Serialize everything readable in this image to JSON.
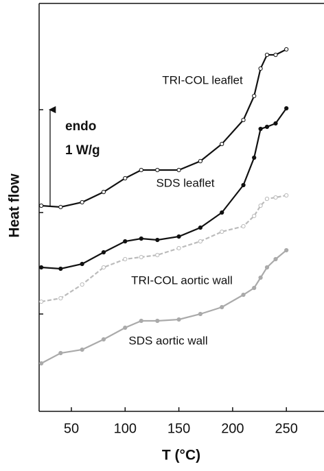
{
  "chart_data": {
    "type": "line",
    "x_label": "T (°C)",
    "y_label": "Heat flow",
    "annotations": [
      "endo",
      "1 W/g"
    ],
    "xlim": [
      20,
      285
    ],
    "xticks": [
      50,
      100,
      150,
      200,
      250
    ],
    "ylim": [
      0,
      595
    ],
    "yticks": [
      142,
      290,
      440
    ],
    "x": [
      22,
      40,
      60,
      80,
      100,
      115,
      130,
      150,
      170,
      190,
      210,
      220,
      226,
      232,
      240,
      250
    ],
    "series": [
      {
        "name": "TRI-COL leaflet",
        "color": "#111111",
        "marker_fill": "#ffffff",
        "dashed": false,
        "values": [
          300,
          298,
          305,
          320,
          340,
          352,
          352,
          352,
          365,
          390,
          425,
          460,
          500,
          520,
          520,
          528
        ]
      },
      {
        "name": "SDS leaflet",
        "color": "#111111",
        "marker_fill": "#111111",
        "dashed": false,
        "values": [
          210,
          208,
          215,
          232,
          248,
          252,
          250,
          255,
          268,
          290,
          330,
          370,
          412,
          415,
          420,
          442
        ]
      },
      {
        "name": "TRI-COL aortic wall",
        "color": "#bbbbbb",
        "marker_fill": "#ffffff",
        "dashed": true,
        "values": [
          160,
          165,
          185,
          210,
          222,
          225,
          228,
          238,
          248,
          262,
          270,
          285,
          300,
          310,
          312,
          315
        ]
      },
      {
        "name": "SDS aortic wall",
        "color": "#aaaaaa",
        "marker_fill": "#aaaaaa",
        "dashed": false,
        "values": [
          70,
          85,
          90,
          105,
          122,
          132,
          132,
          134,
          142,
          152,
          170,
          180,
          195,
          210,
          222,
          235
        ]
      }
    ]
  }
}
